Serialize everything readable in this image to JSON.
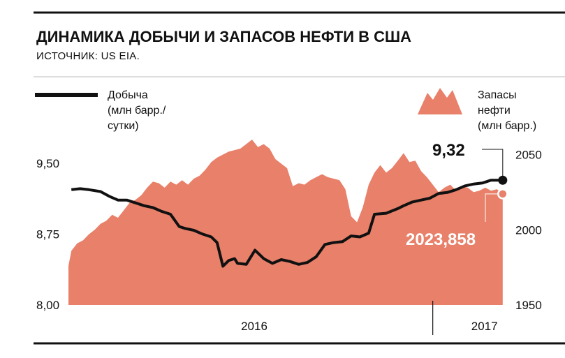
{
  "title": "ДИНАМИКА ДОБЫЧИ И ЗАПАСОВ НЕФТИ В США",
  "subtitle": "ИСТОЧНИК: US EIA.",
  "colors": {
    "production": "#111111",
    "reserves": "#e8806a",
    "text": "#111111"
  },
  "chart_data": {
    "type": "line",
    "legend": {
      "production": [
        "Добыча",
        "(млн барр./",
        "сутки)"
      ],
      "reserves": [
        "Запасы",
        "нефти",
        "(млн барр.)"
      ]
    },
    "x": {
      "start": 2015.75,
      "end": 2017.25,
      "labels": [
        {
          "text": "2016",
          "value": 2016.39
        },
        {
          "text": "2017",
          "value": 2017.18
        }
      ],
      "divider": 2017.0
    },
    "y_left": {
      "range": [
        8.0,
        9.75
      ],
      "ticks": [
        {
          "value": 8.0,
          "label": "8,00"
        },
        {
          "value": 8.75,
          "label": "8,75"
        },
        {
          "value": 9.5,
          "label": "9,50"
        }
      ]
    },
    "y_right": {
      "range": [
        1950,
        2060
      ],
      "ticks": [
        {
          "value": 1950,
          "label": "1950"
        },
        {
          "value": 2000,
          "label": "2000"
        },
        {
          "value": 2050,
          "label": "2050"
        }
      ]
    },
    "series": [
      {
        "name": "Добыча",
        "axis": "left",
        "type": "line",
        "x": [
          2015.76,
          2015.79,
          2015.82,
          2015.86,
          2015.89,
          2015.92,
          2015.95,
          2015.98,
          2016.01,
          2016.04,
          2016.07,
          2016.1,
          2016.13,
          2016.15,
          2016.18,
          2016.21,
          2016.24,
          2016.26,
          2016.28,
          2016.3,
          2016.32,
          2016.33,
          2016.36,
          2016.39,
          2016.42,
          2016.45,
          2016.48,
          2016.51,
          2016.54,
          2016.57,
          2016.6,
          2016.63,
          2016.66,
          2016.69,
          2016.72,
          2016.75,
          2016.78,
          2016.8,
          2016.84,
          2016.88,
          2016.9,
          2016.93,
          2016.96,
          2016.99,
          2017.02,
          2017.05,
          2017.08,
          2017.11,
          2017.14,
          2017.17,
          2017.2,
          2017.22,
          2017.24
        ],
        "values": [
          9.22,
          9.23,
          9.22,
          9.2,
          9.15,
          9.11,
          9.11,
          9.08,
          9.05,
          9.03,
          8.99,
          8.96,
          8.83,
          8.81,
          8.79,
          8.75,
          8.72,
          8.66,
          8.41,
          8.47,
          8.49,
          8.44,
          8.43,
          8.58,
          8.49,
          8.44,
          8.48,
          8.46,
          8.43,
          8.45,
          8.51,
          8.64,
          8.66,
          8.67,
          8.73,
          8.72,
          8.76,
          8.96,
          8.97,
          9.02,
          9.05,
          9.09,
          9.11,
          9.13,
          9.18,
          9.19,
          9.22,
          9.26,
          9.28,
          9.29,
          9.32,
          9.32,
          9.32
        ]
      },
      {
        "name": "Запасы нефти",
        "axis": "right",
        "type": "area",
        "x": [
          2015.75,
          2015.76,
          2015.78,
          2015.8,
          2015.82,
          2015.84,
          2015.86,
          2015.88,
          2015.9,
          2015.92,
          2015.94,
          2015.96,
          2015.98,
          2016.0,
          2016.02,
          2016.04,
          2016.06,
          2016.08,
          2016.1,
          2016.12,
          2016.14,
          2016.16,
          2016.18,
          2016.2,
          2016.22,
          2016.24,
          2016.26,
          2016.28,
          2016.3,
          2016.32,
          2016.34,
          2016.36,
          2016.38,
          2016.4,
          2016.42,
          2016.44,
          2016.46,
          2016.48,
          2016.5,
          2016.52,
          2016.54,
          2016.56,
          2016.58,
          2016.6,
          2016.62,
          2016.64,
          2016.66,
          2016.68,
          2016.7,
          2016.72,
          2016.74,
          2016.76,
          2016.78,
          2016.8,
          2016.82,
          2016.84,
          2016.86,
          2016.88,
          2016.9,
          2016.92,
          2016.94,
          2016.96,
          2016.98,
          2017.0,
          2017.02,
          2017.04,
          2017.06,
          2017.08,
          2017.1,
          2017.12,
          2017.14,
          2017.16,
          2017.18,
          2017.2,
          2017.22,
          2017.24
        ],
        "values": [
          1976,
          1986,
          1991,
          1993,
          1997,
          2000,
          2004,
          2006,
          2010,
          2008,
          2013,
          2018,
          2020,
          2023,
          2028,
          2032,
          2031,
          2028,
          2032,
          2030,
          2033,
          2030,
          2034,
          2036,
          2040,
          2045,
          2048,
          2050,
          2052,
          2053,
          2054,
          2057,
          2060,
          2055,
          2057,
          2054,
          2047,
          2044,
          2041,
          2029,
          2031,
          2030,
          2033,
          2035,
          2037,
          2035,
          2034,
          2033,
          2027,
          2009,
          2005,
          2015,
          2030,
          2038,
          2043,
          2038,
          2041,
          2046,
          2051,
          2045,
          2046,
          2039,
          2035,
          2030,
          2025,
          2028,
          2030,
          2026,
          2029,
          2028,
          2025,
          2026,
          2028,
          2026,
          2027,
          2024
        ]
      }
    ],
    "annotations": [
      {
        "text": "9,32",
        "series": "Добыча",
        "x": 2017.24,
        "value": 9.32
      },
      {
        "text": "2023,858",
        "series": "Запасы нефти",
        "x": 2017.24,
        "value": 2023.858
      }
    ]
  }
}
